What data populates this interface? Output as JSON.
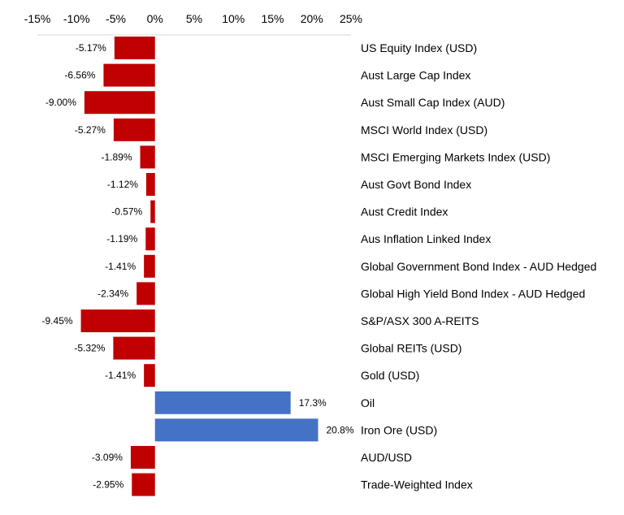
{
  "chart_data": {
    "type": "bar",
    "orientation": "horizontal",
    "xlim": [
      -15,
      25
    ],
    "x_tick_labels": [
      "-15%",
      "-10%",
      "-5%",
      "0%",
      "5%",
      "10%",
      "15%",
      "20%",
      "25%"
    ],
    "x_axis_position": "top",
    "grid": false,
    "colors": {
      "negative": "#C00000",
      "positive": "#4472C4"
    },
    "categories": [
      "US Equity Index (USD)",
      "Aust Large Cap Index",
      "Aust Small Cap Index (AUD)",
      "MSCI World Index (USD)",
      "MSCI Emerging Markets Index (USD)",
      "Aust Govt Bond Index",
      "Aust Credit Index",
      "Aus Inflation Linked Index",
      "Global Government Bond Index - AUD Hedged",
      "Global High Yield Bond Index - AUD Hedged",
      "S&P/ASX 300 A-REITS",
      "Global REITs (USD)",
      "Gold (USD)",
      "Oil",
      "Iron Ore (USD)",
      "AUD/USD",
      "Trade-Weighted Index"
    ],
    "values": [
      -5.17,
      -6.56,
      -9.0,
      -5.27,
      -1.89,
      -1.12,
      -0.57,
      -1.19,
      -1.41,
      -2.34,
      -9.45,
      -5.32,
      -1.41,
      17.3,
      20.8,
      -3.09,
      -2.95
    ],
    "data_labels": [
      "-5.17%",
      "-6.56%",
      "-9.00%",
      "-5.27%",
      "-1.89%",
      "-1.12%",
      "-0.57%",
      "-1.19%",
      "-1.41%",
      "-2.34%",
      "-9.45%",
      "-5.32%",
      "-1.41%",
      "17.3%",
      "20.8%",
      "-3.09%",
      "-2.95%"
    ]
  }
}
